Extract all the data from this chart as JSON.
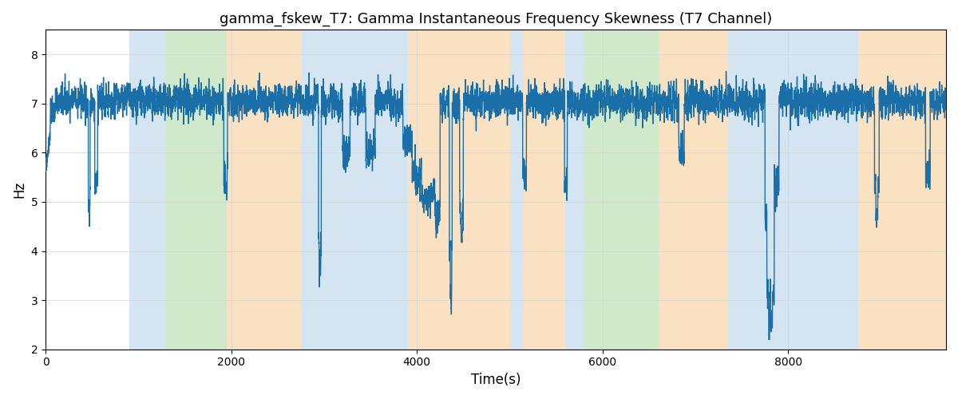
{
  "title": "gamma_fskew_T7: Gamma Instantaneous Frequency Skewness (T7 Channel)",
  "xlabel": "Time(s)",
  "ylabel": "Hz",
  "xlim": [
    0,
    9700
  ],
  "ylim": [
    2,
    8.5
  ],
  "yticks": [
    2,
    3,
    4,
    5,
    6,
    7,
    8
  ],
  "xticks": [
    0,
    2000,
    4000,
    6000,
    8000
  ],
  "line_color": "#1a6fa8",
  "line_width": 1.0,
  "bands": [
    {
      "start": 900,
      "end": 1300,
      "color": "#b8d4e8",
      "alpha": 0.6
    },
    {
      "start": 1300,
      "end": 1950,
      "color": "#a8d8a0",
      "alpha": 0.55
    },
    {
      "start": 1950,
      "end": 2750,
      "color": "#f5c990",
      "alpha": 0.55
    },
    {
      "start": 2750,
      "end": 3000,
      "color": "#b8d4e8",
      "alpha": 0.6
    },
    {
      "start": 3000,
      "end": 3700,
      "color": "#b8d4e8",
      "alpha": 0.6
    },
    {
      "start": 3700,
      "end": 3900,
      "color": "#b8d4e8",
      "alpha": 0.6
    },
    {
      "start": 3900,
      "end": 5000,
      "color": "#f5c990",
      "alpha": 0.55
    },
    {
      "start": 5000,
      "end": 5150,
      "color": "#b8d4e8",
      "alpha": 0.6
    },
    {
      "start": 5150,
      "end": 5600,
      "color": "#f5c990",
      "alpha": 0.55
    },
    {
      "start": 5600,
      "end": 5800,
      "color": "#b8d4e8",
      "alpha": 0.6
    },
    {
      "start": 5800,
      "end": 6000,
      "color": "#a8d8a0",
      "alpha": 0.55
    },
    {
      "start": 6000,
      "end": 6600,
      "color": "#a8d8a0",
      "alpha": 0.55
    },
    {
      "start": 6600,
      "end": 7350,
      "color": "#f5c990",
      "alpha": 0.55
    },
    {
      "start": 7350,
      "end": 7550,
      "color": "#b8d4e8",
      "alpha": 0.6
    },
    {
      "start": 7550,
      "end": 8550,
      "color": "#b8d4e8",
      "alpha": 0.6
    },
    {
      "start": 8550,
      "end": 8750,
      "color": "#b8d4e8",
      "alpha": 0.6
    },
    {
      "start": 8750,
      "end": 9700,
      "color": "#f5c990",
      "alpha": 0.55
    }
  ],
  "seed": 42,
  "n_points": 9700,
  "base_value": 7.05,
  "noise_scale": 0.3,
  "smoothing": 3
}
